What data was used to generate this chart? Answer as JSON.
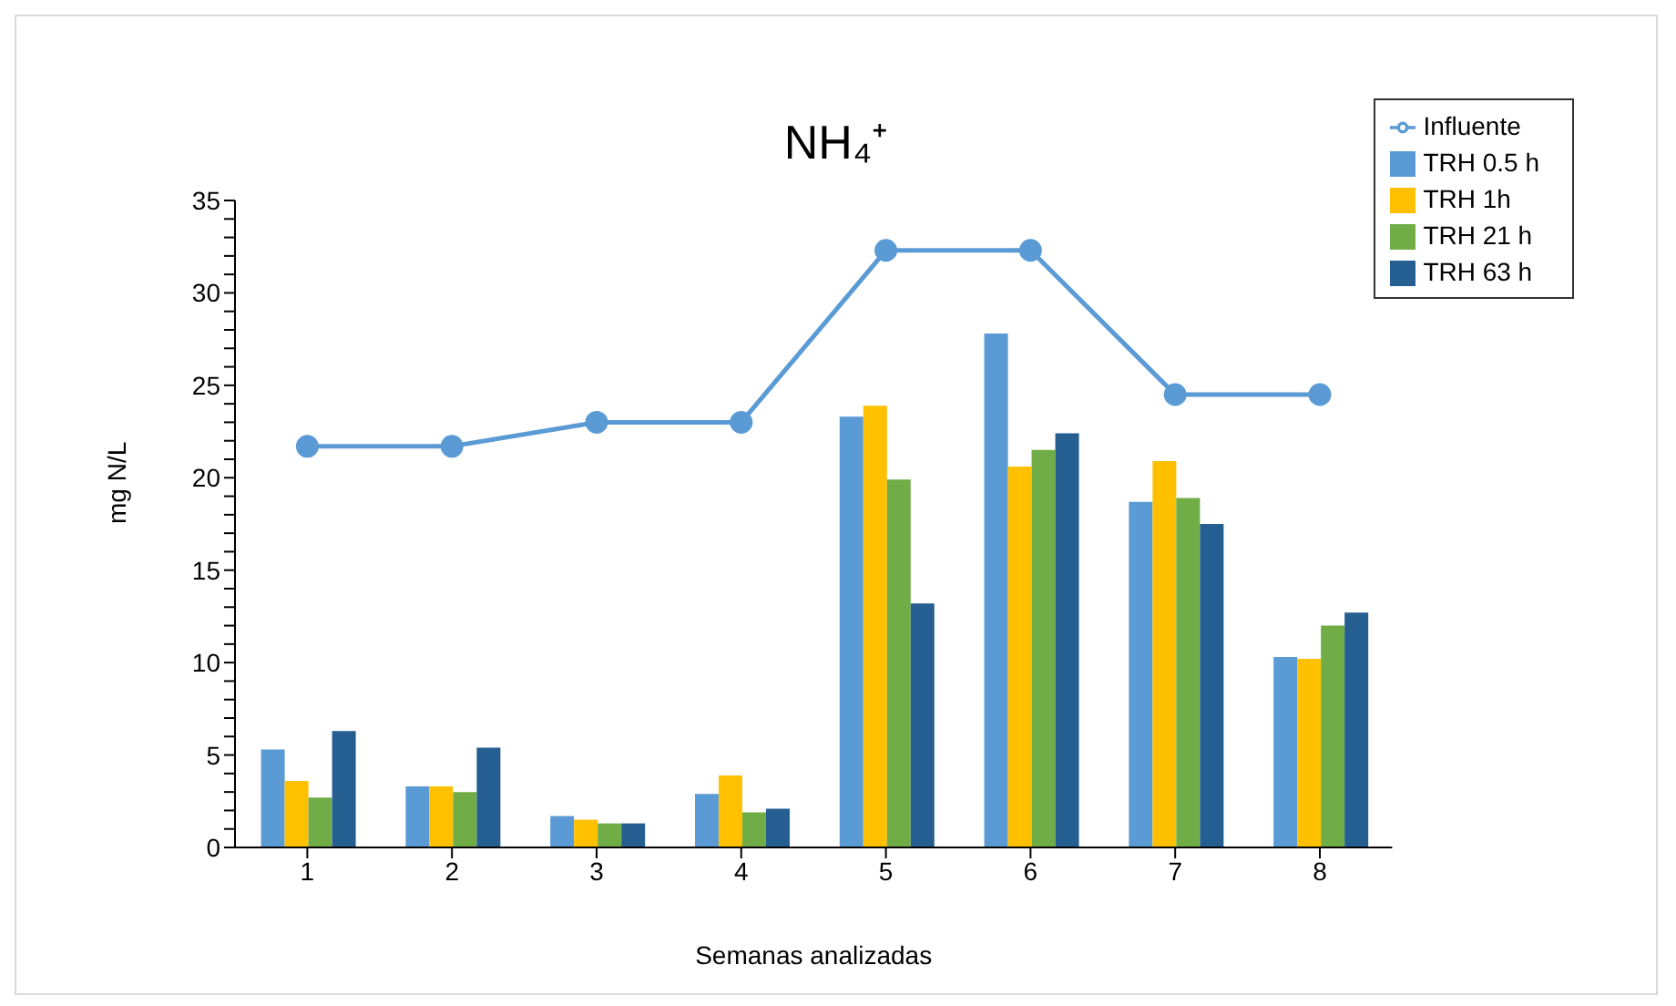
{
  "chart_data": {
    "type": "bar",
    "title": "NH₄⁺",
    "xlabel": "Semanas analizadas",
    "ylabel": "mg N/L",
    "categories": [
      "1",
      "2",
      "3",
      "4",
      "5",
      "6",
      "7",
      "8"
    ],
    "series": [
      {
        "name": "TRH 0.5 h",
        "color": "#5b9bd5",
        "values": [
          5.3,
          3.3,
          1.7,
          2.9,
          23.3,
          27.8,
          18.7,
          10.3
        ]
      },
      {
        "name": "TRH 1h",
        "color": "#ffc000",
        "values": [
          3.6,
          3.3,
          1.5,
          3.9,
          23.9,
          20.6,
          20.9,
          10.2
        ]
      },
      {
        "name": "TRH 21 h",
        "color": "#70ad47",
        "values": [
          2.7,
          3.0,
          1.3,
          1.9,
          19.9,
          21.5,
          18.9,
          12.0
        ]
      },
      {
        "name": "TRH 63 h",
        "color": "#255e91",
        "values": [
          6.3,
          5.4,
          1.3,
          2.1,
          13.2,
          22.4,
          17.5,
          12.7
        ]
      },
      {
        "name": "Influente",
        "type": "line",
        "color": "#5b9bd5",
        "marker": "circle",
        "values": [
          21.7,
          21.7,
          23.0,
          23.0,
          32.3,
          32.3,
          24.5,
          24.5
        ]
      }
    ],
    "ylim": [
      0,
      35
    ],
    "yticks": [
      0,
      {
        "value": 1,
        "label": null
      },
      {
        "value": 2,
        "label": null
      },
      {
        "value": 3,
        "label": null
      },
      {
        "value": 4,
        "label": null
      },
      5,
      {
        "value": 6,
        "label": null
      },
      {
        "value": 7,
        "label": null
      },
      {
        "value": 8,
        "label": null
      },
      {
        "value": 9,
        "label": null
      },
      10,
      {
        "value": 11,
        "label": null
      },
      {
        "value": 12,
        "label": null
      },
      {
        "value": 13,
        "label": null
      },
      {
        "value": 14,
        "label": null
      },
      15,
      {
        "value": 16,
        "label": null
      },
      {
        "value": 17,
        "label": null
      },
      {
        "value": 18,
        "label": null
      },
      {
        "value": 19,
        "label": null
      },
      20,
      {
        "value": 21,
        "label": null
      },
      {
        "value": 22,
        "label": null
      },
      {
        "value": 23,
        "label": null
      },
      {
        "value": 24,
        "label": null
      },
      25,
      {
        "value": 26,
        "label": null
      },
      {
        "value": 27,
        "label": null
      },
      {
        "value": 28,
        "label": null
      },
      {
        "value": 29,
        "label": null
      },
      30,
      {
        "value": 31,
        "label": null
      },
      {
        "value": 32,
        "label": null
      },
      {
        "value": 33,
        "label": null
      },
      {
        "value": 34,
        "label": null
      },
      35
    ],
    "grid": false,
    "legend": "top right"
  }
}
